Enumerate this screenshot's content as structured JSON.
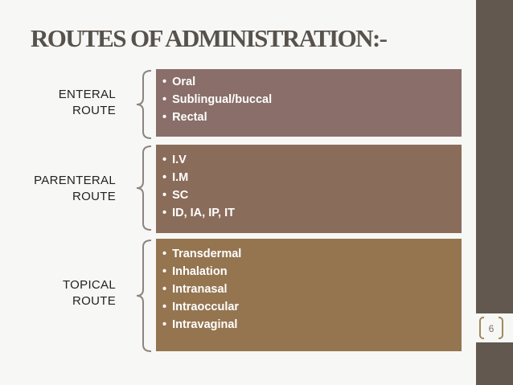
{
  "title": "ROUTES OF ADMINISTRATION:-",
  "page_number": "6",
  "colors": {
    "sidebar": "#625850",
    "enteral_box": "#896e69",
    "parenteral_box": "#8a6c5a",
    "topical_box": "#947550",
    "brace": "#8a8580"
  },
  "routes": [
    {
      "label_line1": "ENTERAL",
      "label_line2": "ROUTE",
      "items": [
        "Oral",
        "Sublingual/buccal",
        "Rectal"
      ]
    },
    {
      "label_line1": "PARENTERAL",
      "label_line2": "ROUTE",
      "items": [
        "I.V",
        "I.M",
        "SC",
        "ID, IA, IP, IT"
      ]
    },
    {
      "label_line1": "TOPICAL",
      "label_line2": "ROUTE",
      "items": [
        "Transdermal",
        "Inhalation",
        "Intranasal",
        "Intraoccular",
        "Intravaginal"
      ]
    }
  ]
}
